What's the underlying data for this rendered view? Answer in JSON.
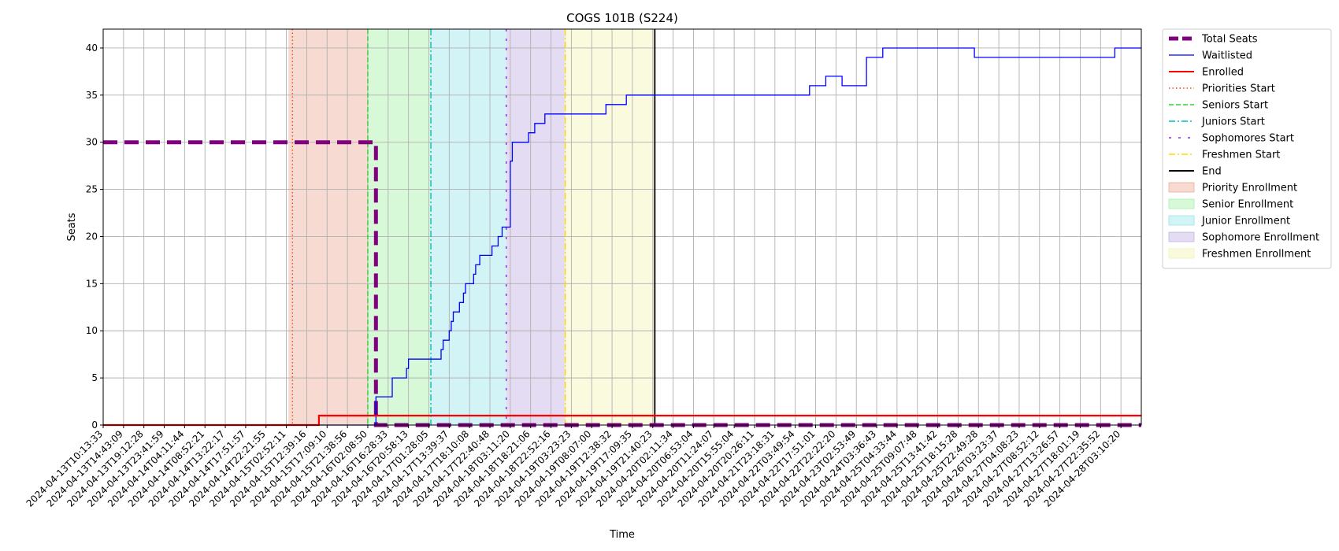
{
  "chart_data": {
    "type": "line",
    "title": "COGS 101B (S224)",
    "xlabel": "Time",
    "ylabel": "Seats",
    "ylim": [
      0,
      42
    ],
    "yticks": [
      0,
      5,
      10,
      15,
      20,
      25,
      30,
      35,
      40
    ],
    "grid": true,
    "legend_position": "outside-top-right",
    "x_categories": [
      "2024-04-13T10:13:33",
      "2024-04-13T14:43:09",
      "2024-04-13T19:12:28",
      "2024-04-13T23:41:59",
      "2024-04-14T04:11:44",
      "2024-04-14T08:52:21",
      "2024-04-14T13:22:17",
      "2024-04-14T17:51:57",
      "2024-04-14T22:21:55",
      "2024-04-15T02:52:11",
      "2024-04-15T12:39:16",
      "2024-04-15T17:09:10",
      "2024-04-15T21:38:56",
      "2024-04-16T02:08:50",
      "2024-04-16T16:28:33",
      "2024-04-16T20:58:13",
      "2024-04-17T01:28:05",
      "2024-04-17T13:39:37",
      "2024-04-17T18:10:08",
      "2024-04-17T22:40:48",
      "2024-04-18T03:11:20",
      "2024-04-18T18:21:06",
      "2024-04-18T22:52:16",
      "2024-04-19T03:23:23",
      "2024-04-19T08:07:00",
      "2024-04-19T12:38:32",
      "2024-04-19T17:09:35",
      "2024-04-19T21:40:23",
      "2024-04-20T02:11:34",
      "2024-04-20T06:53:04",
      "2024-04-20T11:24:07",
      "2024-04-20T15:55:04",
      "2024-04-20T20:26:11",
      "2024-04-21T23:18:31",
      "2024-04-22T03:49:54",
      "2024-04-22T17:51:01",
      "2024-04-22T22:22:20",
      "2024-04-23T02:53:49",
      "2024-04-24T03:36:43",
      "2024-04-25T04:33:44",
      "2024-04-25T09:07:48",
      "2024-04-25T13:41:42",
      "2024-04-25T18:15:28",
      "2024-04-25T22:49:28",
      "2024-04-26T03:23:37",
      "2024-04-27T04:08:23",
      "2024-04-27T08:52:12",
      "2024-04-27T13:26:57",
      "2024-04-27T18:01:19",
      "2024-04-27T22:35:52",
      "2024-04-28T03:10:20"
    ],
    "x_range_index": [
      0,
      51
    ],
    "series": [
      {
        "name": "Total Seats",
        "color": "#800080",
        "style": "dashed-thick",
        "points": [
          [
            0,
            30
          ],
          [
            13.4,
            30
          ],
          [
            13.4,
            0
          ],
          [
            51,
            0
          ]
        ]
      },
      {
        "name": "Waitlisted",
        "color": "#0000ff",
        "style": "solid-thin",
        "points": [
          [
            0,
            0
          ],
          [
            13.4,
            0
          ],
          [
            13.4,
            3
          ],
          [
            14.2,
            3
          ],
          [
            14.2,
            5
          ],
          [
            14.9,
            5
          ],
          [
            14.9,
            6
          ],
          [
            15.0,
            6
          ],
          [
            15.0,
            7
          ],
          [
            16.6,
            7
          ],
          [
            16.6,
            8
          ],
          [
            16.7,
            8
          ],
          [
            16.7,
            9
          ],
          [
            17.0,
            9
          ],
          [
            17.0,
            10
          ],
          [
            17.1,
            10
          ],
          [
            17.1,
            11
          ],
          [
            17.2,
            11
          ],
          [
            17.2,
            12
          ],
          [
            17.5,
            12
          ],
          [
            17.5,
            13
          ],
          [
            17.7,
            13
          ],
          [
            17.7,
            14
          ],
          [
            17.8,
            14
          ],
          [
            17.8,
            15
          ],
          [
            18.2,
            15
          ],
          [
            18.2,
            16
          ],
          [
            18.3,
            16
          ],
          [
            18.3,
            17
          ],
          [
            18.5,
            17
          ],
          [
            18.5,
            18
          ],
          [
            19.1,
            18
          ],
          [
            19.1,
            19
          ],
          [
            19.4,
            19
          ],
          [
            19.4,
            20
          ],
          [
            19.6,
            20
          ],
          [
            19.6,
            21
          ],
          [
            20.0,
            21
          ],
          [
            20.0,
            28
          ],
          [
            20.1,
            28
          ],
          [
            20.1,
            30
          ],
          [
            20.9,
            30
          ],
          [
            20.9,
            31
          ],
          [
            21.2,
            31
          ],
          [
            21.2,
            32
          ],
          [
            21.7,
            32
          ],
          [
            21.7,
            33
          ],
          [
            24.7,
            33
          ],
          [
            24.7,
            34
          ],
          [
            25.7,
            34
          ],
          [
            25.7,
            35
          ],
          [
            34.7,
            35
          ],
          [
            34.7,
            36
          ],
          [
            35.5,
            36
          ],
          [
            35.5,
            37
          ],
          [
            36.3,
            37
          ],
          [
            36.3,
            36
          ],
          [
            37.5,
            36
          ],
          [
            37.5,
            39
          ],
          [
            38.3,
            39
          ],
          [
            38.3,
            40
          ],
          [
            42.8,
            40
          ],
          [
            42.8,
            39
          ],
          [
            49.7,
            39
          ],
          [
            49.7,
            40
          ],
          [
            51,
            40
          ]
        ]
      },
      {
        "name": "Enrolled",
        "color": "#ff0000",
        "style": "solid",
        "points": [
          [
            0,
            0
          ],
          [
            10.6,
            0
          ],
          [
            10.6,
            1
          ],
          [
            51,
            1
          ]
        ]
      }
    ],
    "markers": [
      {
        "name": "Priorities Start",
        "x": 9.3,
        "color": "#ff4500",
        "style": "dotted"
      },
      {
        "name": "Seniors Start",
        "x": 13.0,
        "color": "#32cd32",
        "style": "dashed"
      },
      {
        "name": "Juniors Start",
        "x": 16.1,
        "color": "#00bfbf",
        "style": "dashdot"
      },
      {
        "name": "Sophomores Start",
        "x": 19.8,
        "color": "#8a2be2",
        "style": "loosely-dashed"
      },
      {
        "name": "Freshmen Start",
        "x": 22.7,
        "color": "#ffd700",
        "style": "dashdot"
      },
      {
        "name": "End",
        "x": 27.1,
        "color": "#000000",
        "style": "solid"
      }
    ],
    "spans": [
      {
        "name": "Priority Enrollment",
        "from": 9.1,
        "to": 13.0,
        "color": "#e9967a"
      },
      {
        "name": "Senior Enrollment",
        "from": 13.0,
        "to": 16.1,
        "color": "#90ee90"
      },
      {
        "name": "Junior Enrollment",
        "from": 16.1,
        "to": 19.8,
        "color": "#7fdfe6"
      },
      {
        "name": "Sophomore Enrollment",
        "from": 19.8,
        "to": 22.7,
        "color": "#b19cd9"
      },
      {
        "name": "Freshmen Enrollment",
        "from": 22.7,
        "to": 27.1,
        "color": "#f0f0a0"
      }
    ]
  }
}
